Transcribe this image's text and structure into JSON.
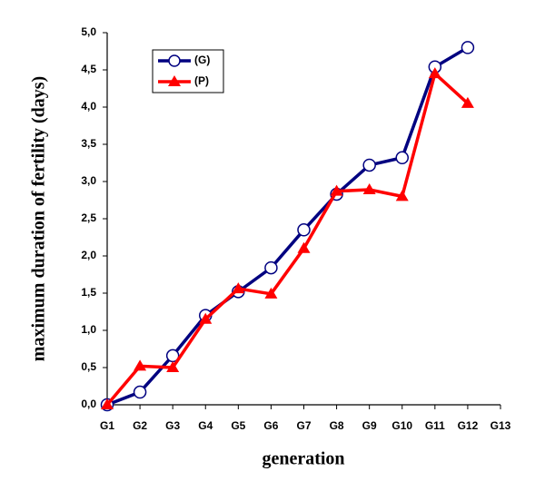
{
  "chart_data": {
    "type": "line",
    "x_label": "generation",
    "y_label": "maximum duration of fertility (days)",
    "categories": [
      "G1",
      "G2",
      "G3",
      "G4",
      "G5",
      "G6",
      "G7",
      "G8",
      "G9",
      "G10",
      "G11",
      "G12",
      "G13"
    ],
    "series": [
      {
        "name": "(G)",
        "color": "#000080",
        "marker": "circle",
        "values": [
          0,
          0.17,
          0.66,
          1.2,
          1.52,
          1.84,
          2.35,
          2.83,
          3.22,
          3.32,
          4.54,
          4.8,
          null
        ]
      },
      {
        "name": "(P)",
        "color": "#ff0000",
        "marker": "triangle",
        "values": [
          0,
          0.52,
          0.5,
          1.15,
          1.56,
          1.49,
          2.1,
          2.87,
          2.89,
          2.8,
          4.45,
          4.05,
          null
        ]
      }
    ],
    "ylim": [
      0,
      5
    ],
    "yticks": [
      {
        "value": 0,
        "label": "0,0"
      },
      {
        "value": 0.5,
        "label": "0,5"
      },
      {
        "value": 1,
        "label": "1,0"
      },
      {
        "value": 1.5,
        "label": "1,5"
      },
      {
        "value": 2,
        "label": "2,0"
      },
      {
        "value": 2.5,
        "label": "2,5"
      },
      {
        "value": 3,
        "label": "3,0"
      },
      {
        "value": 3.5,
        "label": "3,5"
      },
      {
        "value": 4,
        "label": "4,0"
      },
      {
        "value": 4.5,
        "label": "4,5"
      },
      {
        "value": 5,
        "label": "5,0"
      }
    ],
    "legend": "upper left",
    "grid": false
  }
}
